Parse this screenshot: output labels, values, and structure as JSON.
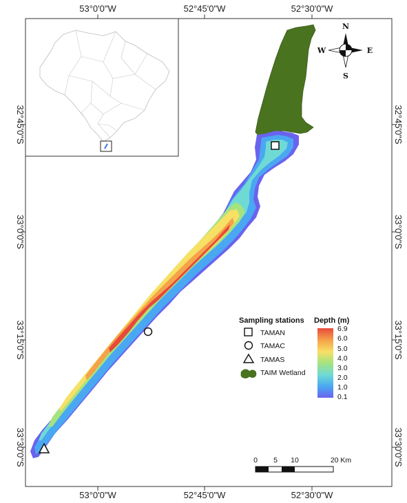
{
  "map": {
    "axes": {
      "top": [
        "53°0'0\"W",
        "52°45'0\"W",
        "52°30'0\"W"
      ],
      "bottom": [
        "53°0'0\"W",
        "52°45'0\"W",
        "52°30'0\"W"
      ],
      "left": [
        "32°45'0\"S",
        "33°0'0\"S",
        "33°15'0\"S",
        "33°30'0\"S"
      ],
      "right": [
        "32°45'0\"S",
        "33°0'0\"S",
        "33°15'0\"S",
        "33°30'0\"S"
      ]
    },
    "compass": {
      "n": "N",
      "s": "S",
      "e": "E",
      "w": "W"
    },
    "legend": {
      "stations_title": "Sampling stations",
      "stations": [
        {
          "label": "TAMAN",
          "symbol": "square"
        },
        {
          "label": "TAMAC",
          "symbol": "circle"
        },
        {
          "label": "TAMAS",
          "symbol": "triangle"
        },
        {
          "label": "TAIM Wetland",
          "symbol": "wetland"
        }
      ],
      "depth_title": "Depth (m)",
      "depth_ticks": [
        "6.9",
        "6.0",
        "5.0",
        "4.0",
        "3.0",
        "2.0",
        "1.0",
        "0.1"
      ]
    },
    "scale_bar": {
      "labels": [
        "0",
        "5",
        "10",
        "20 Km"
      ]
    },
    "colors": {
      "wetland": "#4a7320",
      "depth_ramp": [
        "#e8493a",
        "#f5a249",
        "#f7e066",
        "#a5e37f",
        "#6fdad4",
        "#4aa7f2",
        "#6a63ee"
      ]
    }
  }
}
